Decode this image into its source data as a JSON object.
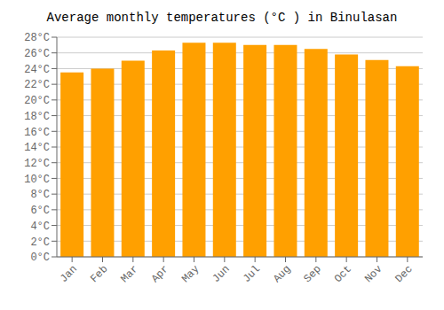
{
  "chart_data": {
    "type": "bar",
    "title": "Average monthly temperatures (°C ) in Binulasan",
    "categories": [
      "Jan",
      "Feb",
      "Mar",
      "Apr",
      "May",
      "Jun",
      "Jul",
      "Aug",
      "Sep",
      "Oct",
      "Nov",
      "Dec"
    ],
    "values": [
      23.5,
      24.0,
      25.0,
      26.3,
      27.3,
      27.3,
      27.0,
      27.0,
      26.5,
      25.8,
      25.1,
      24.3
    ],
    "color": "#FFA000",
    "ylim": [
      0,
      28
    ],
    "yticks": [
      {
        "value": 0,
        "label": "0°C"
      },
      {
        "value": 2,
        "label": "2°C"
      },
      {
        "value": 4,
        "label": "4°C"
      },
      {
        "value": 6,
        "label": "6°C"
      },
      {
        "value": 8,
        "label": "8°C"
      },
      {
        "value": 10,
        "label": "10°C"
      },
      {
        "value": 12,
        "label": "12°C"
      },
      {
        "value": 14,
        "label": "14°C"
      },
      {
        "value": 16,
        "label": "16°C"
      },
      {
        "value": 18,
        "label": "18°C"
      },
      {
        "value": 20,
        "label": "20°C"
      },
      {
        "value": 22,
        "label": "22°C"
      },
      {
        "value": 24,
        "label": "24°C"
      },
      {
        "value": 26,
        "label": "26°C"
      },
      {
        "value": 28,
        "label": "28°C"
      }
    ],
    "grid": true
  }
}
